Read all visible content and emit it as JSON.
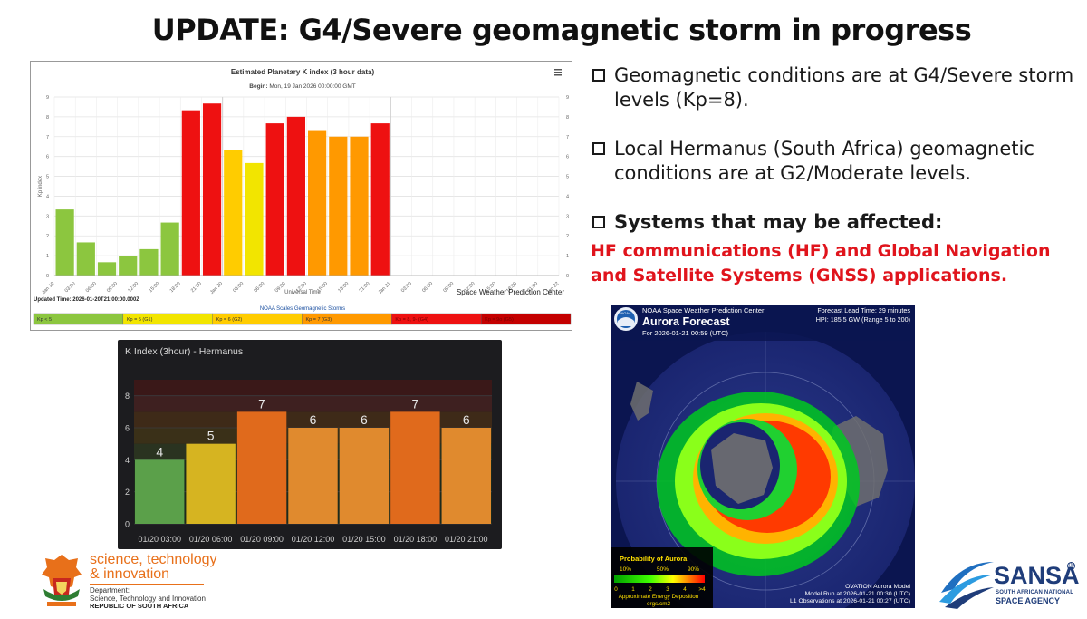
{
  "page": {
    "title": "UPDATE: G4/Severe geomagnetic storm in progress"
  },
  "bullets": [
    {
      "text": "Geomagnetic conditions are at G4/Severe storm levels (Kp=8)."
    },
    {
      "text": "Local Hermanus (South Africa) geomagnetic conditions are at G2/Moderate levels."
    },
    {
      "text": "Systems that may be affected:"
    }
  ],
  "affected_description": "HF communications (HF) and Global Navigation and Satellite Systems (GNSS) applications.",
  "colors": {
    "green": "#8cc63f",
    "yellow": "#f2d400",
    "orange": "#ff9900",
    "red": "#ee1111",
    "darkred": "#c40000",
    "alert_text": "#e0141c"
  },
  "noaa_scales": {
    "title": "NOAA Scales Geomagnetic Storms",
    "items": [
      {
        "label": "Kp < 5",
        "color": "#8cc63f"
      },
      {
        "label": "Kp = 5 (G1)",
        "color": "#f2e500"
      },
      {
        "label": "Kp = 6 (G2)",
        "color": "#ffcc00"
      },
      {
        "label": "Kp = 7 (G3)",
        "color": "#ff9900"
      },
      {
        "label": "Kp = 8, 9- (G4)",
        "color": "#ee1111"
      },
      {
        "label": "Kp = 9o (G5)",
        "color": "#c40000"
      }
    ]
  },
  "aurora": {
    "header": "NOAA Space Weather Prediction Center",
    "title": "Aurora Forecast",
    "for_time": "For 2026-01-21 00:59 (UTC)",
    "lead_time": "Forecast Lead Time:  29 minutes",
    "hpi": "HPI: 185.5 GW (Range 5 to 200)",
    "legend_title": "Probability of Aurora",
    "legend_pcts": [
      "10%",
      "50%",
      "90%"
    ],
    "energy_ticks": [
      "0",
      "1",
      "2",
      "3",
      "4",
      ">4"
    ],
    "energy_label": "Approximate Energy Deposition",
    "energy_unit": "ergs/cm2",
    "model_name": "OVATION Aurora Model",
    "model_run": "Model Run at 2026-01-21 00:30 (UTC)",
    "l1_obs": "L1 Observations at 2026-01-21 00:27 (UTC)",
    "noaa_badge": "NOAA"
  },
  "logos": {
    "dsti_line1": "science, technology",
    "dsti_line2": "& innovation",
    "dsti_dept": "Department:",
    "dsti_dept_name": "Science, Technology and Innovation",
    "dsti_country": "REPUBLIC OF SOUTH AFRICA",
    "sansa_name": "SANSA",
    "sansa_sub1": "SOUTH AFRICAN NATIONAL",
    "sansa_sub2": "SPACE AGENCY",
    "sansa_tm": "TM"
  },
  "chart_data": [
    {
      "type": "bar",
      "title": "Estimated Planetary K index (3 hour data)",
      "subtitle_label": "Begin:",
      "subtitle_value": "Mon, 19 Jan 2026 00:00:00 GMT",
      "xlabel": "Universal Time",
      "ylabel": "Kp index",
      "ylim": [
        0,
        9
      ],
      "y_ticks": [
        "0",
        "1",
        "2",
        "3",
        "4",
        "5",
        "6",
        "7",
        "8",
        "9"
      ],
      "x_ticks": [
        "Jan 19",
        "03:00",
        "06:00",
        "09:00",
        "12:00",
        "15:00",
        "18:00",
        "21:00",
        "Jan 20",
        "03:00",
        "06:00",
        "09:00",
        "12:00",
        "15:00",
        "18:00",
        "21:00",
        "Jan 21",
        "03:00",
        "06:00",
        "09:00",
        "12:00",
        "15:00",
        "18:00",
        "21:00",
        "Jan 22"
      ],
      "values": [
        3.33,
        1.67,
        0.67,
        1.0,
        1.33,
        2.67,
        8.33,
        8.67,
        6.33,
        5.67,
        7.67,
        8.0,
        7.33,
        7.0,
        7.0,
        7.67
      ],
      "bar_colors": [
        "#8cc63f",
        "#8cc63f",
        "#8cc63f",
        "#8cc63f",
        "#8cc63f",
        "#8cc63f",
        "#ee1111",
        "#ee1111",
        "#ffcc00",
        "#f2e500",
        "#ee1111",
        "#ee1111",
        "#ff9900",
        "#ff9900",
        "#ff9900",
        "#ee1111"
      ],
      "updated": "Updated Time: 2026-01-20T21:00:00.000Z",
      "credit": "Space Weather Prediction Center",
      "menu_icon": "hamburger-menu-icon",
      "grid": true
    },
    {
      "type": "bar",
      "title": "K Index (3hour) - Hermanus",
      "ylim": [
        0,
        9
      ],
      "y_ticks": [
        "0",
        "2",
        "4",
        "6",
        "8"
      ],
      "categories": [
        "01/20 03:00",
        "01/20 06:00",
        "01/20 09:00",
        "01/20 12:00",
        "01/20 15:00",
        "01/20 18:00",
        "01/20 21:00"
      ],
      "values": [
        4,
        5,
        7,
        6,
        6,
        7,
        6
      ],
      "bar_colors": [
        "#5ba04a",
        "#d6b421",
        "#e06a1c",
        "#e08a2e",
        "#e08a2e",
        "#e06a1c",
        "#e08a2e"
      ],
      "grid": true
    }
  ]
}
